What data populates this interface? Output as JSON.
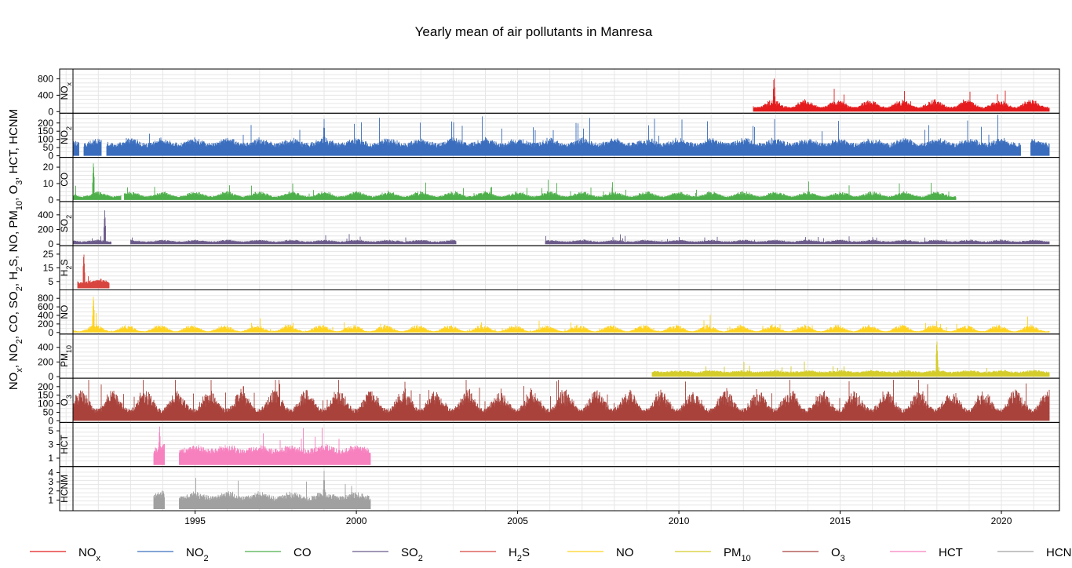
{
  "chart_data": {
    "type": "line",
    "title": "Yearly mean of air pollutants in Manresa",
    "xlabel": "",
    "ylabel": "NOx, NO2, CO, SO2, H2S, NO, PM10, O3, HCT, HCNM",
    "xlim": [
      1990.8,
      2021.8
    ],
    "x_ticks": [
      1995,
      2000,
      2005,
      2010,
      2015,
      2020
    ],
    "grid": true,
    "legend_position": "bottom",
    "panels": [
      {
        "name": "NOx",
        "label": "NOx",
        "color": "#e41a1c",
        "ylim": [
          0,
          1000
        ],
        "y_ticks": [
          0,
          400,
          800
        ],
        "start": 2012.3,
        "end": 2021.5,
        "base": 75,
        "amp": 150,
        "peak": 900,
        "peak_x": 2012.95,
        "peak_month": 0.92,
        "gaps": []
      },
      {
        "name": "NO2",
        "label": "NO2",
        "color": "#3a6dbd",
        "ylim": [
          0,
          250
        ],
        "y_ticks": [
          0,
          50,
          100,
          150,
          200
        ],
        "start": 1991.2,
        "end": 2021.5,
        "base": 50,
        "amp": 28,
        "peak": 225,
        "peak_x": 1999.0,
        "peak_month": 0.0,
        "gaps": [
          [
            1991.4,
            1991.55
          ],
          [
            1992.1,
            1992.25
          ],
          [
            2020.6,
            2020.9
          ]
        ]
      },
      {
        "name": "CO",
        "label": "CO",
        "color": "#4daf4a",
        "ylim": [
          0,
          25
        ],
        "y_ticks": [
          0,
          10,
          20
        ],
        "start": 1991.2,
        "end": 2018.6,
        "base": 1.5,
        "amp": 2.5,
        "peak": 24,
        "peak_x": 1991.85,
        "peak_month": 0.0,
        "gaps": [
          [
            1992.7,
            1992.8
          ]
        ]
      },
      {
        "name": "SO2",
        "label": "SO2",
        "color": "#6b5b8a",
        "ylim": [
          0,
          560
        ],
        "y_ticks": [
          0,
          200,
          400
        ],
        "start": 1991.2,
        "end": 2021.5,
        "base": 25,
        "amp": 20,
        "peak": 470,
        "peak_x": 1992.2,
        "peak_month": 0.0,
        "gaps": [
          [
            1992.4,
            1993.0
          ],
          [
            2003.1,
            2005.85
          ]
        ]
      },
      {
        "name": "H2S",
        "label": "H2S",
        "color": "#d8443e",
        "ylim": [
          0,
          30
        ],
        "y_ticks": [
          5,
          15,
          25
        ],
        "start": 1991.35,
        "end": 1992.35,
        "base": 3,
        "amp": 2,
        "peak": 27,
        "peak_x": 1991.55,
        "peak_month": 0.0,
        "gaps": []
      },
      {
        "name": "NO",
        "label": "NO",
        "color": "#ffd21f",
        "ylim": [
          0,
          960
        ],
        "y_ticks": [
          0,
          200,
          400,
          600,
          800
        ],
        "start": 1991.2,
        "end": 2021.5,
        "base": 20,
        "amp": 120,
        "peak": 900,
        "peak_x": 1991.85,
        "peak_month": 0.9,
        "gaps": []
      },
      {
        "name": "PM10",
        "label": "PM10",
        "color": "#d4cc2a",
        "ylim": [
          0,
          560
        ],
        "y_ticks": [
          0,
          200,
          400
        ],
        "start": 2009.15,
        "end": 2021.5,
        "base": 45,
        "amp": 20,
        "peak": 520,
        "peak_x": 2018.0,
        "peak_month": 0.0,
        "gaps": []
      },
      {
        "name": "O3",
        "label": "O3",
        "color": "#a8423b",
        "ylim": [
          0,
          240
        ],
        "y_ticks": [
          0,
          50,
          100,
          150,
          200
        ],
        "start": 1991.2,
        "end": 2021.5,
        "base": 45,
        "amp": 95,
        "peak": 230,
        "peak_x": 1996.5,
        "peak_month": 0.45,
        "gaps": []
      },
      {
        "name": "HCT",
        "label": "HCT",
        "color": "#f781bf",
        "ylim": [
          0,
          6
        ],
        "y_ticks": [
          1,
          3,
          5
        ],
        "start": 1993.7,
        "end": 2000.45,
        "base": 1.5,
        "amp": 0.6,
        "peak": 5.9,
        "peak_x": 1993.9,
        "peak_month": 0.0,
        "gaps": [
          [
            1994.05,
            1994.5
          ]
        ]
      },
      {
        "name": "HCNM",
        "label": "HCNM",
        "color": "#a0a0a0",
        "ylim": [
          0,
          4.5
        ],
        "y_ticks": [
          1,
          2,
          3,
          4
        ],
        "start": 1993.7,
        "end": 2000.45,
        "base": 0.9,
        "amp": 0.5,
        "peak": 4.2,
        "peak_x": 1999.0,
        "peak_month": 0.0,
        "gaps": [
          [
            1994.05,
            1994.5
          ]
        ]
      }
    ],
    "legend": [
      {
        "label": "NOx",
        "color": "#e41a1c"
      },
      {
        "label": "NO2",
        "color": "#3a6dbd"
      },
      {
        "label": "CO",
        "color": "#4daf4a"
      },
      {
        "label": "SO2",
        "color": "#6b5b8a"
      },
      {
        "label": "H2S",
        "color": "#d8443e"
      },
      {
        "label": "NO",
        "color": "#ffd21f"
      },
      {
        "label": "PM10",
        "color": "#d4cc2a"
      },
      {
        "label": "O3",
        "color": "#a8423b"
      },
      {
        "label": "HCT",
        "color": "#f781bf"
      },
      {
        "label": "HCNM",
        "color": "#a0a0a0"
      }
    ]
  }
}
